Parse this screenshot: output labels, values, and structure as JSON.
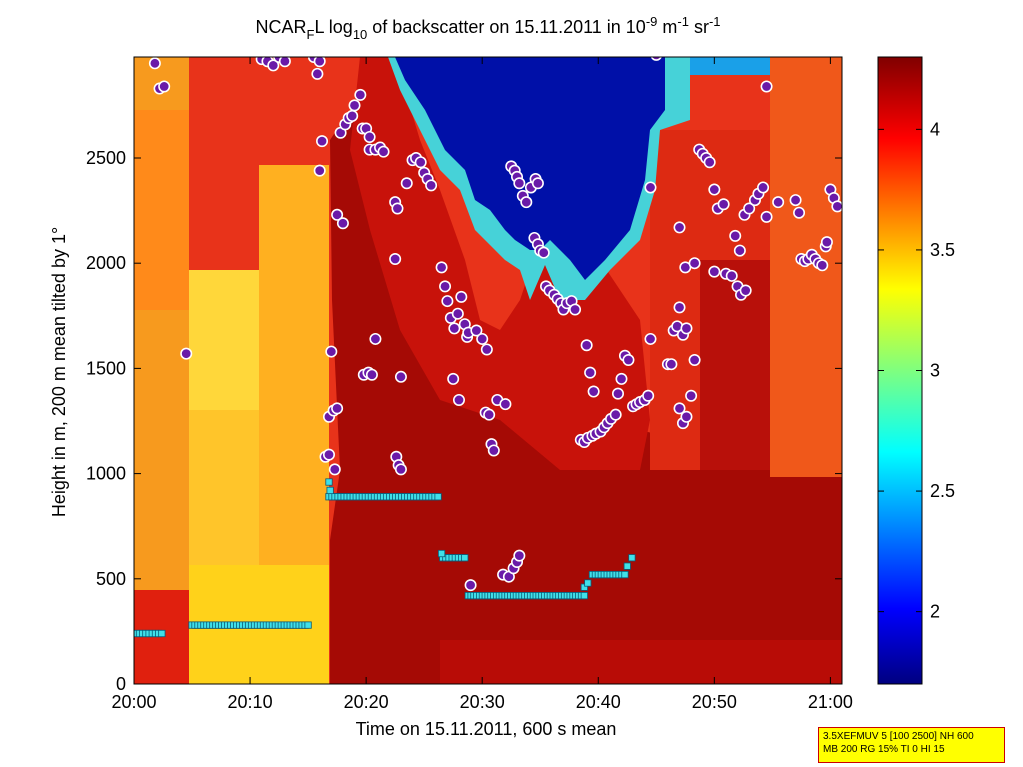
{
  "chart_data": {
    "type": "heatmap",
    "title": {
      "prefix": "NCAR",
      "prefix_sub": "F",
      "after_prefix": "L log",
      "log_sub": "10",
      "middle": " of backscatter on 15.11.2011 in 10",
      "exp1": "-9",
      "unit1": " m",
      "exp2": "-1",
      "unit2": " sr",
      "exp3": "-1"
    },
    "xlabel": "Time on 15.11.2011, 600 s mean",
    "ylabel": "Height in m, 200 m mean tilted by 1°",
    "x_ticks": [
      "20:00",
      "20:10",
      "20:20",
      "20:30",
      "20:40",
      "20:50",
      "21:00"
    ],
    "x_tick_minutes": [
      0,
      10,
      20,
      30,
      40,
      50,
      60
    ],
    "xlim_minutes": [
      0,
      61
    ],
    "y_ticks": [
      "0",
      "500",
      "1000",
      "1500",
      "2000",
      "2500"
    ],
    "y_tick_values": [
      0,
      500,
      1000,
      1500,
      2000,
      2500
    ],
    "ylim": [
      0,
      2980
    ],
    "colorbar": {
      "range": [
        1.7,
        4.3
      ],
      "ticks": [
        "2",
        "2.5",
        "3",
        "3.5",
        "4"
      ],
      "tick_values": [
        2,
        2.5,
        3,
        3.5,
        4
      ]
    },
    "series": [
      {
        "marker": "purple-dot",
        "points": [
          [
            4.5,
            1570
          ],
          [
            11,
            2970
          ],
          [
            11.5,
            2960
          ],
          [
            12,
            2940
          ],
          [
            12.5,
            2980
          ],
          [
            13,
            2960
          ],
          [
            15.5,
            2980
          ],
          [
            16,
            2960
          ],
          [
            15.8,
            2900
          ],
          [
            16.2,
            2580
          ],
          [
            16,
            2440
          ],
          [
            17,
            1580
          ],
          [
            16.8,
            1270
          ],
          [
            17.2,
            1300
          ],
          [
            17.5,
            1310
          ],
          [
            16.5,
            1080
          ],
          [
            16.8,
            1090
          ],
          [
            17.3,
            1020
          ],
          [
            17.5,
            2230
          ],
          [
            18,
            2190
          ],
          [
            17.8,
            2620
          ],
          [
            18.2,
            2660
          ],
          [
            18.5,
            2690
          ],
          [
            18.8,
            2700
          ],
          [
            19,
            2750
          ],
          [
            19.5,
            2800
          ],
          [
            19.7,
            2640
          ],
          [
            20,
            2640
          ],
          [
            20.3,
            2600
          ],
          [
            19.8,
            1470
          ],
          [
            20.2,
            1480
          ],
          [
            20.5,
            1470
          ],
          [
            20.8,
            1640
          ],
          [
            20.3,
            2540
          ],
          [
            20.8,
            2540
          ],
          [
            21.2,
            2550
          ],
          [
            21.5,
            2530
          ],
          [
            22.5,
            2290
          ],
          [
            22.7,
            2260
          ],
          [
            22.5,
            2020
          ],
          [
            22.6,
            1080
          ],
          [
            22.8,
            1040
          ],
          [
            23,
            1020
          ],
          [
            23,
            1460
          ],
          [
            23.5,
            2380
          ],
          [
            24,
            2490
          ],
          [
            24.3,
            2500
          ],
          [
            24.7,
            2480
          ],
          [
            25,
            2430
          ],
          [
            25.3,
            2400
          ],
          [
            25.6,
            2370
          ],
          [
            26.5,
            1980
          ],
          [
            26.8,
            1890
          ],
          [
            27,
            1820
          ],
          [
            27.3,
            1740
          ],
          [
            27.6,
            1690
          ],
          [
            27.9,
            1760
          ],
          [
            28.2,
            1840
          ],
          [
            28.5,
            1710
          ],
          [
            28.7,
            1650
          ],
          [
            28.8,
            1670
          ],
          [
            27.5,
            1450
          ],
          [
            28,
            1350
          ],
          [
            29.5,
            1680
          ],
          [
            30,
            1640
          ],
          [
            30.4,
            1590
          ],
          [
            30.3,
            1290
          ],
          [
            30.6,
            1280
          ],
          [
            30.8,
            1140
          ],
          [
            31,
            1110
          ],
          [
            31.3,
            1350
          ],
          [
            32,
            1330
          ],
          [
            29,
            470
          ],
          [
            31.8,
            520
          ],
          [
            32.3,
            510
          ],
          [
            32.7,
            550
          ],
          [
            33,
            580
          ],
          [
            33.2,
            610
          ],
          [
            32.5,
            2460
          ],
          [
            32.8,
            2440
          ],
          [
            33,
            2410
          ],
          [
            33.2,
            2380
          ],
          [
            33.5,
            2320
          ],
          [
            33.8,
            2290
          ],
          [
            34.2,
            2360
          ],
          [
            34.6,
            2400
          ],
          [
            34.8,
            2380
          ],
          [
            34.5,
            2120
          ],
          [
            34.8,
            2090
          ],
          [
            35,
            2060
          ],
          [
            35.3,
            2050
          ],
          [
            35.5,
            1890
          ],
          [
            35.8,
            1870
          ],
          [
            36.2,
            1850
          ],
          [
            36.5,
            1830
          ],
          [
            36.8,
            1810
          ],
          [
            37,
            1780
          ],
          [
            37.3,
            1810
          ],
          [
            37.7,
            1820
          ],
          [
            38,
            1780
          ],
          [
            38.5,
            1160
          ],
          [
            38.8,
            1150
          ],
          [
            39.1,
            1170
          ],
          [
            39.5,
            1180
          ],
          [
            39.8,
            1190
          ],
          [
            40.2,
            1200
          ],
          [
            40.5,
            1220
          ],
          [
            40.8,
            1240
          ],
          [
            41.1,
            1260
          ],
          [
            41.5,
            1280
          ],
          [
            39,
            1610
          ],
          [
            39.3,
            1480
          ],
          [
            39.6,
            1390
          ],
          [
            41.7,
            1380
          ],
          [
            42,
            1450
          ],
          [
            42.3,
            1560
          ],
          [
            42.6,
            1540
          ],
          [
            43,
            1320
          ],
          [
            43.3,
            1330
          ],
          [
            43.6,
            1340
          ],
          [
            44,
            1350
          ],
          [
            44.3,
            1370
          ],
          [
            44.5,
            1640
          ],
          [
            44.5,
            2360
          ],
          [
            45,
            2990
          ],
          [
            46,
            1520
          ],
          [
            46.3,
            1520
          ],
          [
            46.5,
            1680
          ],
          [
            46.8,
            1700
          ],
          [
            47,
            1790
          ],
          [
            47.3,
            1660
          ],
          [
            47.6,
            1690
          ],
          [
            47,
            1310
          ],
          [
            47.3,
            1240
          ],
          [
            47.6,
            1270
          ],
          [
            48,
            1370
          ],
          [
            48.3,
            1540
          ],
          [
            47,
            2170
          ],
          [
            47.5,
            1980
          ],
          [
            48.3,
            2000
          ],
          [
            48.7,
            2540
          ],
          [
            49,
            2520
          ],
          [
            49.3,
            2500
          ],
          [
            49.6,
            2480
          ],
          [
            50,
            2350
          ],
          [
            50.3,
            2260
          ],
          [
            50.8,
            2280
          ],
          [
            50,
            1960
          ],
          [
            51,
            1950
          ],
          [
            51.5,
            1940
          ],
          [
            52,
            1890
          ],
          [
            52.3,
            1850
          ],
          [
            52.7,
            1870
          ],
          [
            51.8,
            2130
          ],
          [
            52.2,
            2060
          ],
          [
            52.6,
            2230
          ],
          [
            53,
            2260
          ],
          [
            53.5,
            2300
          ],
          [
            53.8,
            2330
          ],
          [
            54.2,
            2360
          ],
          [
            54.5,
            2220
          ],
          [
            54.5,
            2840
          ],
          [
            55.5,
            2290
          ],
          [
            57,
            2300
          ],
          [
            57.3,
            2240
          ],
          [
            57.5,
            2020
          ],
          [
            57.8,
            2010
          ],
          [
            58.1,
            2020
          ],
          [
            58.4,
            2040
          ],
          [
            58.7,
            2020
          ],
          [
            59,
            2000
          ],
          [
            59.3,
            1990
          ],
          [
            59.6,
            2080
          ],
          [
            59.7,
            2100
          ],
          [
            60,
            2350
          ],
          [
            60.3,
            2310
          ],
          [
            60.6,
            2270
          ],
          [
            2.2,
            2830
          ],
          [
            2.6,
            2840
          ],
          [
            1.8,
            2950
          ]
        ]
      },
      {
        "marker": "cyan-square",
        "segments": [
          {
            "x0": 0.2,
            "x1": 2.4,
            "y": 240,
            "n": 9
          },
          {
            "x0": 5.0,
            "x1": 15.0,
            "y": 280,
            "n": 40
          },
          {
            "x0": 16.8,
            "x1": 26.2,
            "y": 890,
            "n": 37
          },
          {
            "x0": 26.6,
            "x1": 28.5,
            "y": 600,
            "n": 8
          },
          {
            "x0": 28.8,
            "x1": 38.8,
            "y": 420,
            "n": 42
          },
          {
            "x0": 39.5,
            "x1": 42.3,
            "y": 520,
            "n": 12
          }
        ],
        "points": [
          [
            16.8,
            960
          ],
          [
            16.9,
            920
          ],
          [
            26.5,
            620
          ],
          [
            38.8,
            460
          ],
          [
            39.1,
            480
          ],
          [
            42.5,
            560
          ],
          [
            42.9,
            600
          ]
        ]
      }
    ]
  },
  "info_box": {
    "line1": "3.5XEFMUV 5 [100 2500] NH 600",
    "line2": "MB 200 RG 15% TI 0 HI 15"
  }
}
